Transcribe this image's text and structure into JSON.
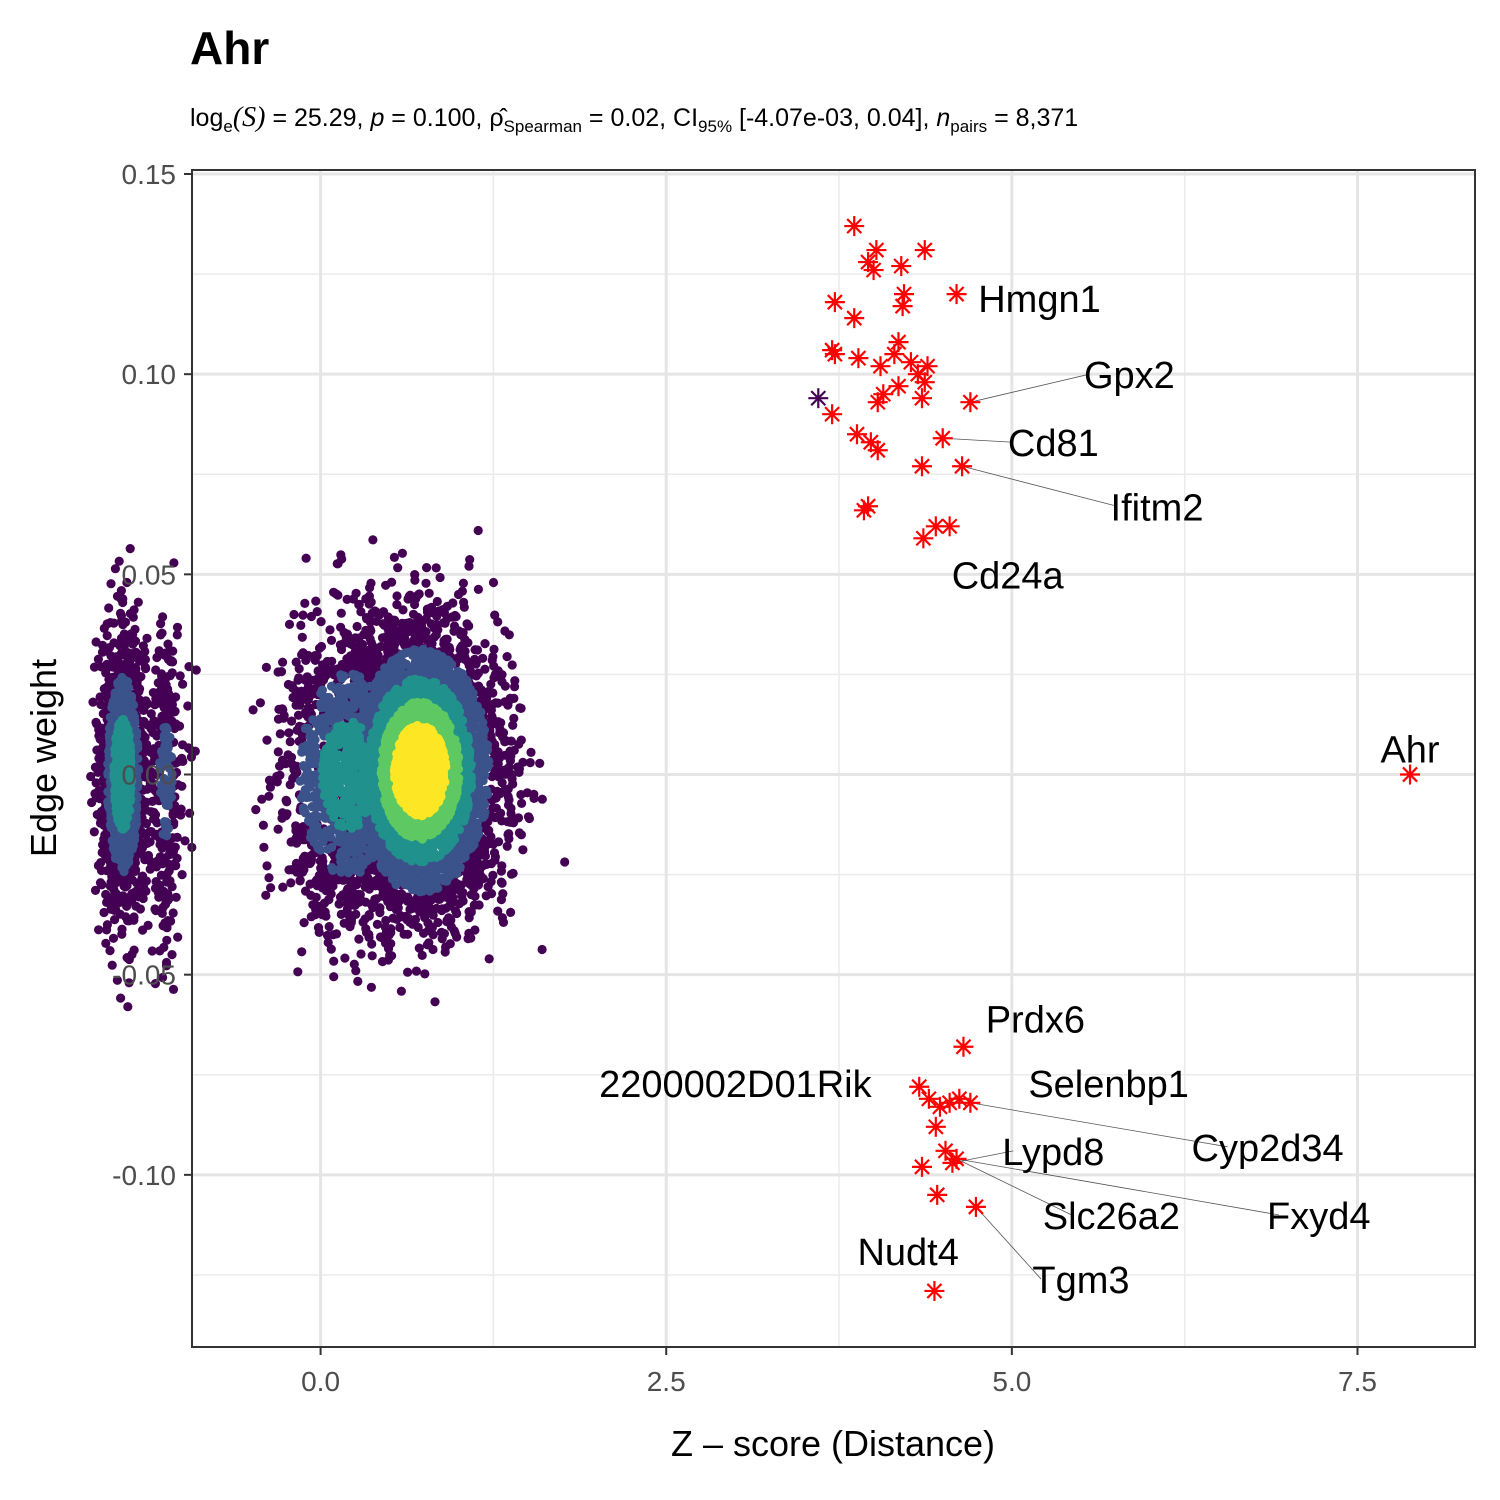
{
  "chart_data": {
    "type": "scatter",
    "title": "Ahr",
    "subtitle": {
      "stat_prefix": "log",
      "stat_base": "e",
      "stat_symbol": "(S)",
      "stat_value": " = 25.29, ",
      "p_symbol": "p",
      "p_value": " = 0.100, ",
      "rho_symbol": "ρ̂",
      "rho_sub": "Spearman",
      "rho_value": " = 0.02, CI",
      "ci_sub": "95%",
      "ci_value": " [-4.07e-03, 0.04], ",
      "n_symbol": "n",
      "n_sub": "pairs",
      "n_value": " = 8,371"
    },
    "xlabel": "Z – score (Distance)",
    "ylabel": "Edge weight",
    "xlim": [
      -0.93,
      8.35
    ],
    "ylim": [
      -0.143,
      0.151
    ],
    "x_ticks": [
      0.0,
      2.5,
      5.0,
      7.5
    ],
    "x_tick_labels": [
      "0.0",
      "2.5",
      "5.0",
      "7.5"
    ],
    "y_ticks": [
      -0.1,
      -0.05,
      0.0,
      0.05,
      0.1,
      0.15
    ],
    "y_tick_labels": [
      "-0.10",
      "-0.05",
      "0.00",
      "0.05",
      "0.10",
      "0.15"
    ],
    "grid": true,
    "density_clusters": [
      {
        "cx": -1.43,
        "cy": 0.0,
        "sx": 0.08,
        "sy": 0.017,
        "n": 1400
      },
      {
        "cx": -1.12,
        "cy": -0.002,
        "sx": 0.07,
        "sy": 0.02,
        "n": 300
      },
      {
        "cx": 0.72,
        "cy": 0.001,
        "sx": 0.28,
        "sy": 0.017,
        "n": 4500
      },
      {
        "cx": 0.2,
        "cy": 0.0,
        "sx": 0.25,
        "sy": 0.018,
        "n": 1300
      }
    ],
    "density_colors": [
      "#440154",
      "#3b528b",
      "#21918c",
      "#5ec962",
      "#fde725"
    ],
    "outlier_points": [
      {
        "x": 3.86,
        "y": 0.137
      },
      {
        "x": 4.02,
        "y": 0.131
      },
      {
        "x": 4.37,
        "y": 0.131
      },
      {
        "x": 3.96,
        "y": 0.128
      },
      {
        "x": 4.0,
        "y": 0.126
      },
      {
        "x": 4.2,
        "y": 0.127
      },
      {
        "x": 4.6,
        "y": 0.12
      },
      {
        "x": 3.72,
        "y": 0.118
      },
      {
        "x": 4.22,
        "y": 0.12
      },
      {
        "x": 4.21,
        "y": 0.117
      },
      {
        "x": 3.86,
        "y": 0.114
      },
      {
        "x": 4.18,
        "y": 0.108
      },
      {
        "x": 3.7,
        "y": 0.106
      },
      {
        "x": 3.72,
        "y": 0.105
      },
      {
        "x": 3.89,
        "y": 0.104
      },
      {
        "x": 4.15,
        "y": 0.105
      },
      {
        "x": 4.05,
        "y": 0.102
      },
      {
        "x": 4.27,
        "y": 0.103
      },
      {
        "x": 4.39,
        "y": 0.102
      },
      {
        "x": 4.32,
        "y": 0.1
      },
      {
        "x": 4.18,
        "y": 0.097
      },
      {
        "x": 4.37,
        "y": 0.098
      },
      {
        "x": 4.07,
        "y": 0.095
      },
      {
        "x": 4.03,
        "y": 0.093
      },
      {
        "x": 4.35,
        "y": 0.094
      },
      {
        "x": 3.7,
        "y": 0.09
      },
      {
        "x": 4.7,
        "y": 0.093
      },
      {
        "x": 3.88,
        "y": 0.085
      },
      {
        "x": 3.98,
        "y": 0.083
      },
      {
        "x": 4.03,
        "y": 0.081
      },
      {
        "x": 4.5,
        "y": 0.084
      },
      {
        "x": 4.35,
        "y": 0.077
      },
      {
        "x": 4.64,
        "y": 0.077
      },
      {
        "x": 3.93,
        "y": 0.066
      },
      {
        "x": 3.96,
        "y": 0.067
      },
      {
        "x": 4.45,
        "y": 0.062
      },
      {
        "x": 4.55,
        "y": 0.062
      },
      {
        "x": 4.36,
        "y": 0.059
      },
      {
        "x": 7.88,
        "y": 0.0
      },
      {
        "x": 4.65,
        "y": -0.068
      },
      {
        "x": 4.33,
        "y": -0.078
      },
      {
        "x": 4.4,
        "y": -0.081
      },
      {
        "x": 4.48,
        "y": -0.083
      },
      {
        "x": 4.55,
        "y": -0.082
      },
      {
        "x": 4.62,
        "y": -0.081
      },
      {
        "x": 4.7,
        "y": -0.082
      },
      {
        "x": 4.45,
        "y": -0.088
      },
      {
        "x": 4.52,
        "y": -0.094
      },
      {
        "x": 4.57,
        "y": -0.097
      },
      {
        "x": 4.6,
        "y": -0.096
      },
      {
        "x": 4.35,
        "y": -0.098
      },
      {
        "x": 4.46,
        "y": -0.105
      },
      {
        "x": 4.74,
        "y": -0.108
      },
      {
        "x": 4.44,
        "y": -0.129
      }
    ],
    "dark_outlier": {
      "x": 3.6,
      "y": 0.094
    },
    "outlier_color": "#ff0000",
    "dark_outlier_color": "#440154",
    "annotations": [
      {
        "text": "Hmgn1",
        "x": 4.6,
        "y": 0.12,
        "lx": 5.2,
        "ly": 0.119,
        "anchor": "middle",
        "line": false
      },
      {
        "text": "Gpx2",
        "x": 4.7,
        "y": 0.093,
        "lx": 5.85,
        "ly": 0.1,
        "anchor": "middle",
        "line": true
      },
      {
        "text": "Cd81",
        "x": 4.5,
        "y": 0.084,
        "lx": 5.3,
        "ly": 0.083,
        "anchor": "middle",
        "line": true
      },
      {
        "text": "Ifitm2",
        "x": 4.64,
        "y": 0.077,
        "lx": 6.05,
        "ly": 0.067,
        "anchor": "middle",
        "line": true
      },
      {
        "text": "Cd24a",
        "x": 4.36,
        "y": 0.059,
        "lx": 4.97,
        "ly": 0.05,
        "anchor": "middle",
        "line": false
      },
      {
        "text": "Ahr",
        "x": 7.88,
        "y": 0.0,
        "lx": 7.88,
        "ly": 0.0065,
        "anchor": "middle",
        "line": false
      },
      {
        "text": "Prdx6",
        "x": 4.65,
        "y": -0.068,
        "lx": 5.17,
        "ly": -0.061,
        "anchor": "middle",
        "line": false
      },
      {
        "text": "2200002D01Rik",
        "x": 4.33,
        "y": -0.078,
        "lx": 3.0,
        "ly": -0.077,
        "anchor": "middle",
        "line": false
      },
      {
        "text": "Selenbp1",
        "x": 4.62,
        "y": -0.081,
        "lx": 5.7,
        "ly": -0.077,
        "anchor": "middle",
        "line": false
      },
      {
        "text": "Cyp2d34",
        "x": 4.7,
        "y": -0.082,
        "lx": 6.85,
        "ly": -0.093,
        "anchor": "middle",
        "line": true
      },
      {
        "text": "Lypd8",
        "x": 4.57,
        "y": -0.097,
        "lx": 5.3,
        "ly": -0.094,
        "anchor": "middle",
        "line": true
      },
      {
        "text": "Slc26a2",
        "x": 4.6,
        "y": -0.096,
        "lx": 5.72,
        "ly": -0.11,
        "anchor": "middle",
        "line": true
      },
      {
        "text": "Fxyd4",
        "x": 4.6,
        "y": -0.096,
        "lx": 7.22,
        "ly": -0.11,
        "anchor": "middle",
        "line": true
      },
      {
        "text": "Nudt4",
        "x": 4.46,
        "y": -0.105,
        "lx": 4.25,
        "ly": -0.119,
        "anchor": "middle",
        "line": false
      },
      {
        "text": "Tgm3",
        "x": 4.74,
        "y": -0.108,
        "lx": 5.5,
        "ly": -0.126,
        "anchor": "middle",
        "line": true
      }
    ]
  }
}
